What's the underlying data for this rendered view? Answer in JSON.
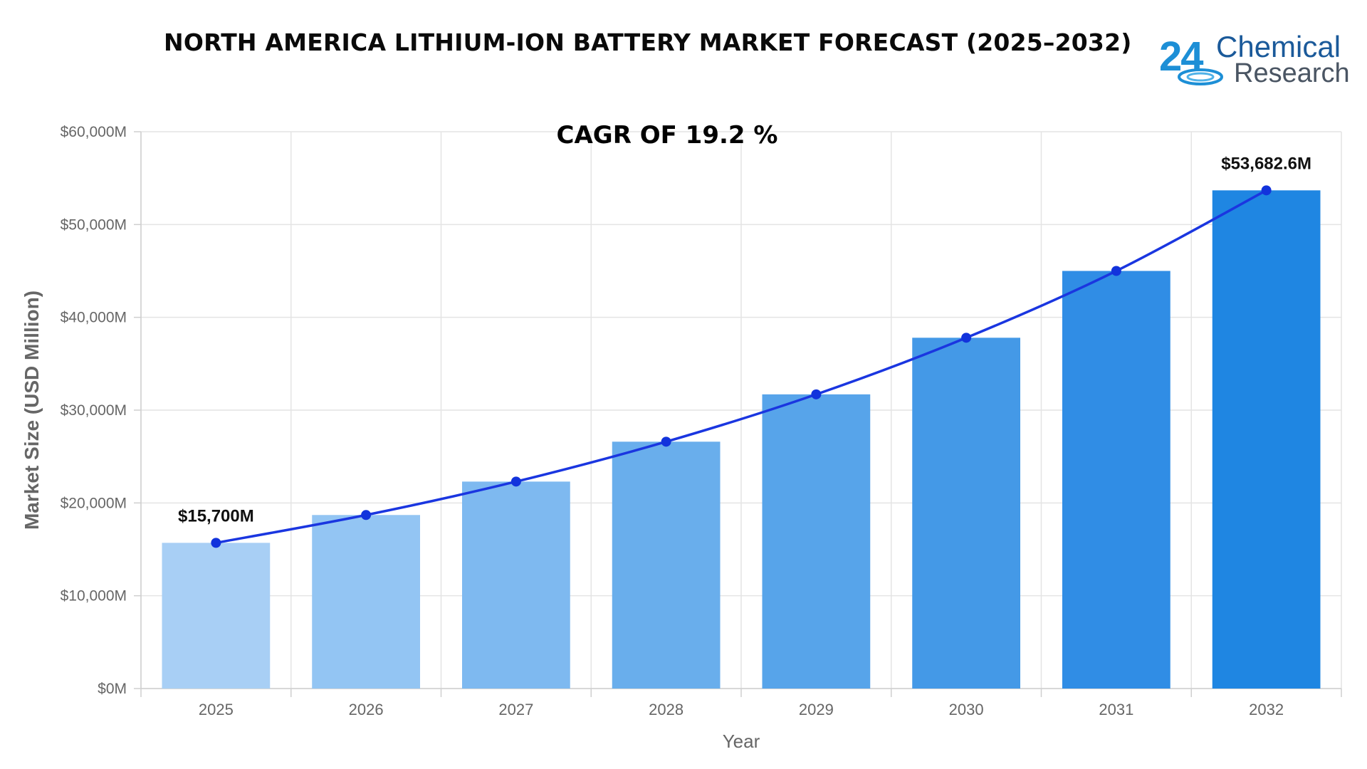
{
  "chart_data": {
    "type": "bar",
    "title": "NORTH AMERICA LITHIUM-ION BATTERY MARKET FORECAST (2025–2032)",
    "annotation": "CAGR OF 19.2 %",
    "xlabel": "Year",
    "ylabel": "Market Size (USD Million)",
    "categories": [
      "2025",
      "2026",
      "2027",
      "2028",
      "2029",
      "2030",
      "2031",
      "2032"
    ],
    "values": [
      15700,
      18700,
      22300,
      26600,
      31700,
      37800,
      45000,
      53682.6
    ],
    "ylim": [
      0,
      60000
    ],
    "y_ticks": [
      0,
      10000,
      20000,
      30000,
      40000,
      50000,
      60000
    ],
    "y_tick_labels": [
      "$0M",
      "$10,000M",
      "$20,000M",
      "$30,000M",
      "$40,000M",
      "$50,000M",
      "$60,000M"
    ],
    "data_labels": [
      {
        "index": 0,
        "text": "$15,700M"
      },
      {
        "index": 7,
        "text": "$53,682.6M"
      }
    ],
    "overlay": "line-with-markers",
    "grid": true,
    "colors": {
      "bars": [
        "#a8cff5",
        "#93c5f3",
        "#7eb9f0",
        "#69aeec",
        "#57a4ea",
        "#4499e7",
        "#308de5",
        "#1f86e2"
      ],
      "line": "#1a36e0",
      "marker": "#1233dc",
      "grid": "#e4e4e4"
    }
  },
  "logo": {
    "number": "24",
    "line1": "Chemical",
    "line2": "Research"
  }
}
